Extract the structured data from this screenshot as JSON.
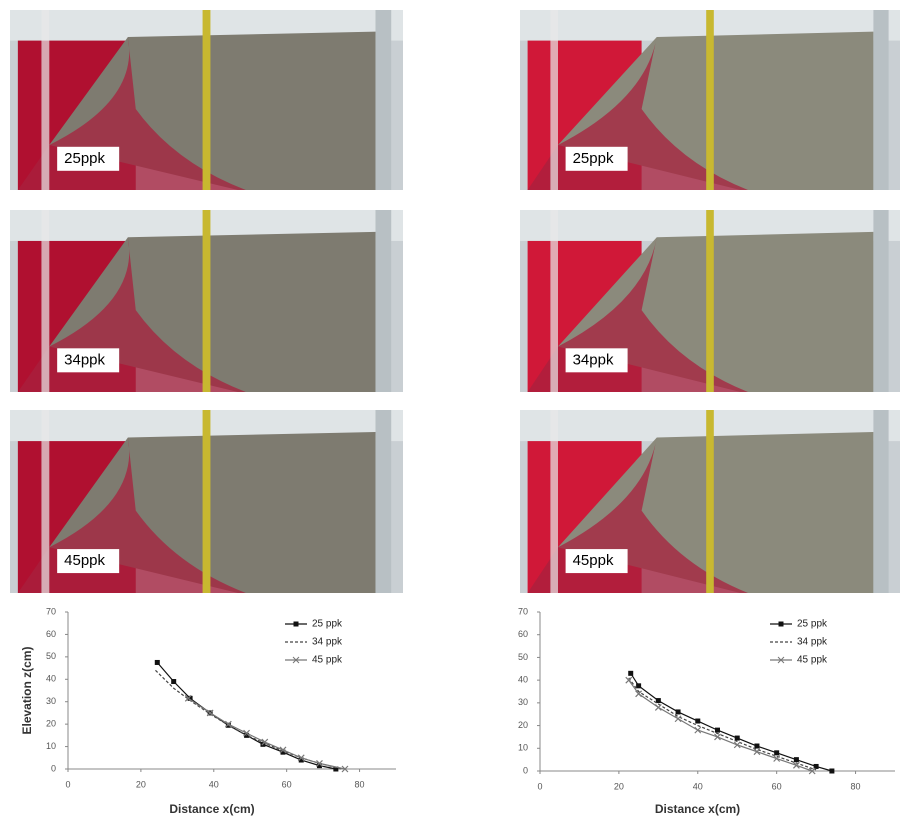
{
  "panels": {
    "left": [
      "25ppk",
      "34ppk",
      "45ppk"
    ],
    "right": [
      "25ppk",
      "34ppk",
      "45ppk"
    ]
  },
  "chart_data": [
    {
      "type": "line",
      "x_label": "Distance x(cm)",
      "y_label": "Elevation z(cm)",
      "xlim": [
        0,
        90
      ],
      "xticks": [
        0,
        20,
        40,
        60,
        80
      ],
      "ylim": [
        0,
        70
      ],
      "yticks": [
        0,
        10,
        20,
        30,
        40,
        50,
        60,
        70
      ],
      "series": [
        {
          "name": "25 ppk",
          "color": "#111111",
          "dash": "solid",
          "marker": "square",
          "x": [
            24.5,
            29,
            33.5,
            39,
            44,
            49,
            53.5,
            59,
            64,
            69,
            73.5
          ],
          "values": [
            47.5,
            39,
            31.5,
            25,
            19.5,
            15,
            11,
            7.5,
            4,
            1.5,
            0
          ]
        },
        {
          "name": "34 ppk",
          "color": "#444444",
          "dash": "dashed",
          "marker": "none",
          "x": [
            24,
            29,
            34,
            39,
            44,
            49,
            54,
            59,
            64,
            69,
            75
          ],
          "values": [
            44,
            36,
            30,
            24.5,
            19.5,
            15,
            11.5,
            8,
            5,
            2.5,
            0
          ]
        },
        {
          "name": "45 ppk",
          "color": "#777777",
          "dash": "solid",
          "marker": "cross",
          "x": [
            33,
            39,
            44,
            49,
            54,
            59,
            64,
            69,
            76
          ],
          "values": [
            31.5,
            25,
            20,
            16,
            12,
            8.5,
            5,
            2.5,
            0
          ]
        }
      ]
    },
    {
      "type": "line",
      "x_label": "Distance x(cm)",
      "xlim": [
        0,
        90
      ],
      "xticks": [
        0,
        20,
        40,
        60,
        80
      ],
      "ylim": [
        0,
        70
      ],
      "yticks": [
        0,
        10,
        20,
        30,
        40,
        50,
        60,
        70
      ],
      "series": [
        {
          "name": "25 ppk",
          "color": "#111111",
          "dash": "solid",
          "marker": "square",
          "x": [
            23,
            25,
            30,
            35,
            40,
            45,
            50,
            55,
            60,
            65,
            70,
            74
          ],
          "values": [
            43,
            37.5,
            31,
            26,
            22,
            18,
            14.5,
            11,
            8,
            5,
            2,
            0
          ]
        },
        {
          "name": "34 ppk",
          "color": "#444444",
          "dash": "dashed",
          "marker": "none",
          "x": [
            22.5,
            25,
            30,
            35,
            40,
            45,
            50,
            55,
            60,
            65,
            70
          ],
          "values": [
            41,
            35,
            29.5,
            24,
            20,
            16.5,
            13,
            9.5,
            6.5,
            3.5,
            0.5
          ]
        },
        {
          "name": "45 ppk",
          "color": "#777777",
          "dash": "solid",
          "marker": "cross",
          "x": [
            22.5,
            25,
            30,
            35,
            40,
            45,
            50,
            55,
            60,
            65,
            69
          ],
          "values": [
            40,
            34,
            28,
            23,
            18,
            15,
            11.5,
            8.5,
            5.5,
            2.5,
            0
          ]
        }
      ]
    }
  ]
}
